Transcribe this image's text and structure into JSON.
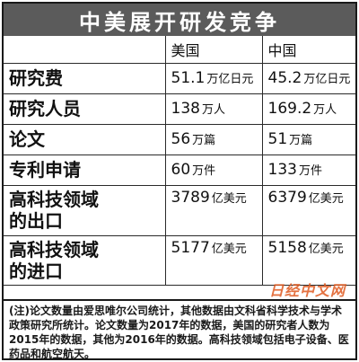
{
  "title": "中美展开研发竞争",
  "columns": {
    "us": "美国",
    "cn": "中国"
  },
  "rows": [
    {
      "label": "研究费",
      "us_num": "51.1",
      "us_unit": "万亿日元",
      "cn_num": "45.2",
      "cn_unit": "万亿日元"
    },
    {
      "label": "研究人员",
      "us_num": "138",
      "us_unit": "万人",
      "cn_num": "169.2",
      "cn_unit": "万人"
    },
    {
      "label": "论文",
      "us_num": "56",
      "us_unit": "万篇",
      "cn_num": "51",
      "cn_unit": "万篇"
    },
    {
      "label": "专利申请",
      "us_num": "60",
      "us_unit": "万件",
      "cn_num": "133",
      "cn_unit": "万件"
    },
    {
      "label_line1": "高科技领域",
      "label_line2": "的出口",
      "us_num": "3789",
      "us_unit": "亿美元",
      "cn_num": "6379",
      "cn_unit": "亿美元"
    },
    {
      "label_line1": "高科技领域",
      "label_line2": "的进口",
      "us_num": "5177",
      "us_unit": "亿美元",
      "cn_num": "5158",
      "cn_unit": "亿美元"
    }
  ],
  "note": "(注)论文数量由爱思唯尔公司统计，其他数据由文科省科学技术与学术政策研究所统计。论文数量为2017年的数据，美国的研究者人数为2015年的数据，其他为2016年的数据。高科技领域包括电子设备、医药品和航空航天。",
  "watermark": "日经中文网"
}
